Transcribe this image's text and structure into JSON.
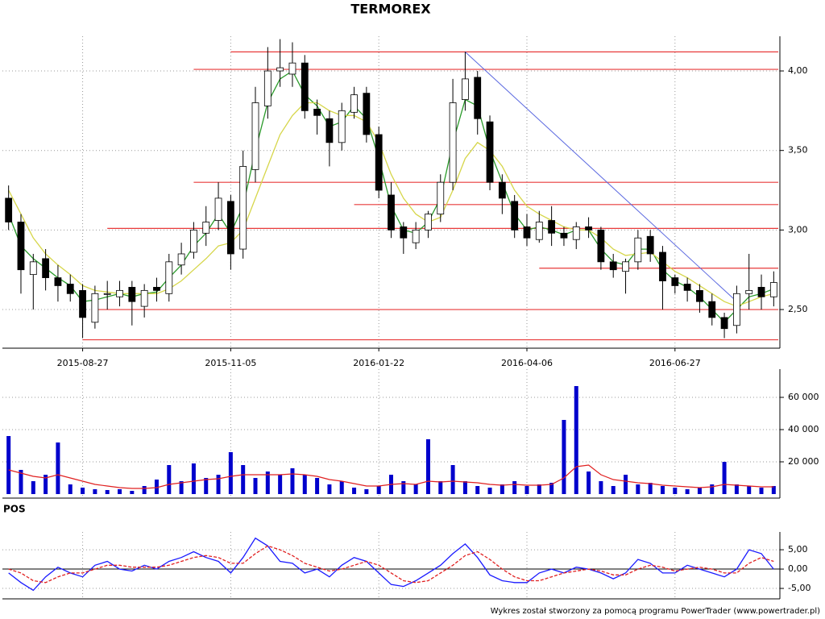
{
  "footer": "Wykres został stworzony za pomocą programu PowerTrader (www.powertrader.pl)",
  "chart_data": [
    {
      "type": "candlestick",
      "title": "TERMOREX",
      "categories": [
        null,
        null,
        null,
        null,
        null,
        null,
        "2015-08-27",
        null,
        null,
        null,
        null,
        null,
        null,
        null,
        null,
        null,
        null,
        null,
        "2015-11-05",
        null,
        null,
        null,
        null,
        null,
        null,
        null,
        null,
        null,
        null,
        null,
        "2016-01-22",
        null,
        null,
        null,
        null,
        null,
        null,
        null,
        null,
        null,
        null,
        null,
        "2016-04-06",
        null,
        null,
        null,
        null,
        null,
        null,
        null,
        null,
        null,
        null,
        null,
        "2016-06-27",
        null,
        null,
        null,
        null,
        null,
        null,
        null,
        null
      ],
      "open": [
        3.2,
        3.05,
        2.72,
        2.82,
        2.7,
        2.66,
        2.62,
        2.42,
        2.6,
        2.58,
        2.64,
        2.52,
        2.64,
        2.6,
        2.78,
        2.86,
        2.98,
        3.06,
        3.18,
        2.88,
        3.38,
        3.78,
        4.0,
        3.98,
        4.05,
        3.76,
        3.7,
        3.55,
        3.74,
        3.86,
        3.6,
        3.22,
        3.02,
        2.92,
        3.0,
        3.1,
        3.3,
        3.82,
        3.96,
        3.68,
        3.3,
        3.18,
        3.02,
        2.94,
        3.06,
        2.98,
        2.94,
        3.02,
        3.0,
        2.8,
        2.74,
        2.8,
        2.96,
        2.86,
        2.7,
        2.66,
        2.62,
        2.55,
        2.45,
        2.4,
        2.6,
        2.64,
        2.58
      ],
      "high": [
        3.28,
        3.1,
        2.85,
        2.88,
        2.78,
        2.72,
        2.66,
        2.65,
        2.68,
        2.68,
        2.68,
        2.66,
        2.7,
        2.85,
        2.92,
        3.05,
        3.15,
        3.3,
        3.22,
        3.5,
        3.9,
        4.15,
        4.2,
        4.18,
        4.1,
        3.82,
        3.75,
        3.8,
        3.9,
        3.9,
        3.65,
        3.3,
        3.05,
        3.05,
        3.12,
        3.35,
        3.95,
        4.12,
        4.0,
        3.72,
        3.35,
        3.22,
        3.1,
        3.12,
        3.15,
        3.02,
        3.05,
        3.08,
        3.02,
        2.85,
        2.82,
        3.0,
        3.0,
        2.9,
        2.72,
        2.7,
        2.66,
        2.6,
        2.48,
        2.65,
        2.85,
        2.72,
        2.74
      ],
      "low": [
        3.0,
        2.6,
        2.5,
        2.62,
        2.55,
        2.55,
        2.32,
        2.38,
        2.5,
        2.52,
        2.4,
        2.45,
        2.55,
        2.55,
        2.72,
        2.82,
        2.9,
        3.0,
        2.75,
        2.82,
        3.3,
        3.7,
        3.9,
        3.9,
        3.7,
        3.6,
        3.4,
        3.5,
        3.7,
        3.55,
        3.2,
        2.95,
        2.85,
        2.88,
        2.95,
        3.05,
        3.25,
        3.75,
        3.6,
        3.25,
        3.1,
        2.95,
        2.9,
        2.92,
        2.9,
        2.9,
        2.88,
        2.95,
        2.75,
        2.7,
        2.6,
        2.75,
        2.8,
        2.5,
        2.6,
        2.55,
        2.48,
        2.4,
        2.32,
        2.35,
        2.5,
        2.5,
        2.52
      ],
      "close": [
        3.05,
        2.75,
        2.8,
        2.7,
        2.65,
        2.6,
        2.45,
        2.6,
        2.6,
        2.62,
        2.55,
        2.62,
        2.62,
        2.8,
        2.85,
        3.0,
        3.05,
        3.2,
        2.85,
        3.4,
        3.8,
        4.0,
        4.02,
        4.05,
        3.75,
        3.72,
        3.55,
        3.75,
        3.85,
        3.6,
        3.25,
        3.0,
        2.95,
        3.0,
        3.1,
        3.3,
        3.8,
        3.95,
        3.7,
        3.3,
        3.2,
        3.0,
        2.95,
        3.05,
        2.98,
        2.95,
        3.02,
        3.0,
        2.8,
        2.75,
        2.8,
        2.95,
        2.85,
        2.68,
        2.65,
        2.62,
        2.55,
        2.45,
        2.38,
        2.6,
        2.62,
        2.58,
        2.67
      ],
      "series": [
        {
          "color": "#2a9a2a",
          "values": [
            3.1,
            2.9,
            2.82,
            2.76,
            2.7,
            2.65,
            2.55,
            2.56,
            2.58,
            2.6,
            2.58,
            2.6,
            2.61,
            2.7,
            2.78,
            2.9,
            2.98,
            3.1,
            2.98,
            3.15,
            3.5,
            3.8,
            3.95,
            4.0,
            3.85,
            3.78,
            3.65,
            3.68,
            3.78,
            3.7,
            3.45,
            3.15,
            3.0,
            2.98,
            3.05,
            3.2,
            3.55,
            3.82,
            3.78,
            3.5,
            3.3,
            3.1,
            3.0,
            3.02,
            3.0,
            2.97,
            3.0,
            3.0,
            2.88,
            2.8,
            2.78,
            2.88,
            2.88,
            2.75,
            2.68,
            2.64,
            2.58,
            2.5,
            2.42,
            2.5,
            2.58,
            2.6,
            2.63
          ]
        },
        {
          "color": "#d6d64a",
          "values": [
            3.25,
            3.1,
            2.95,
            2.85,
            2.78,
            2.72,
            2.65,
            2.62,
            2.61,
            2.6,
            2.6,
            2.6,
            2.6,
            2.63,
            2.68,
            2.75,
            2.82,
            2.9,
            2.92,
            3.0,
            3.2,
            3.4,
            3.6,
            3.72,
            3.8,
            3.8,
            3.75,
            3.72,
            3.72,
            3.68,
            3.55,
            3.35,
            3.2,
            3.1,
            3.05,
            3.08,
            3.25,
            3.45,
            3.55,
            3.5,
            3.4,
            3.25,
            3.15,
            3.1,
            3.06,
            3.02,
            3.0,
            3.0,
            2.95,
            2.88,
            2.84,
            2.85,
            2.86,
            2.8,
            2.74,
            2.7,
            2.65,
            2.6,
            2.55,
            2.52,
            2.55,
            2.58,
            2.6
          ]
        }
      ],
      "levels": [
        {
          "value": 4.12,
          "from": 18
        },
        {
          "value": 4.01,
          "from": 15
        },
        {
          "value": 3.3,
          "from": 15
        },
        {
          "value": 3.16,
          "from": 28
        },
        {
          "value": 3.01,
          "from": 8
        },
        {
          "value": 2.76,
          "from": 43
        },
        {
          "value": 2.5,
          "from": 7
        },
        {
          "value": 2.31,
          "from": 6
        }
      ],
      "level_color": "#e83a3a",
      "trendline": {
        "x": [
          37,
          59
        ],
        "values": [
          4.12,
          2.55
        ],
        "color": "#5a68e0"
      },
      "ylim": [
        2.257,
        4.218
      ],
      "yticks": [
        {
          "value": 2.5,
          "label": "2,50"
        },
        {
          "value": 3,
          "label": "3,00"
        },
        {
          "value": 3.5,
          "label": "3,50"
        },
        {
          "value": 4,
          "label": "4,00"
        }
      ],
      "grid": true
    },
    {
      "type": "bar",
      "color": "#0000cc",
      "values": [
        36000,
        15000,
        8000,
        12000,
        32000,
        6000,
        4000,
        3000,
        2500,
        3000,
        2000,
        5000,
        9000,
        18000,
        8000,
        19000,
        10000,
        12000,
        26000,
        18000,
        10000,
        14000,
        12000,
        16000,
        12000,
        10000,
        6000,
        8000,
        4000,
        3000,
        5000,
        12000,
        8000,
        6000,
        34000,
        8000,
        18000,
        8000,
        5000,
        4000,
        6000,
        8000,
        5000,
        6000,
        7000,
        46000,
        67000,
        14000,
        8000,
        5000,
        12000,
        6000,
        7000,
        5000,
        4000,
        3000,
        4000,
        6000,
        20000,
        6000,
        5000,
        4000,
        5000
      ],
      "series": [
        {
          "color": "#e02020",
          "values": [
            15000,
            13000,
            11000,
            10000,
            12000,
            10000,
            8000,
            6000,
            5000,
            4000,
            3500,
            3500,
            4000,
            6000,
            7000,
            8000,
            9000,
            9500,
            11000,
            12000,
            12000,
            12000,
            12000,
            12500,
            12000,
            11000,
            9000,
            8000,
            6500,
            5000,
            5000,
            6000,
            6500,
            6000,
            8000,
            7500,
            8000,
            7500,
            7000,
            6000,
            5500,
            6000,
            5500,
            5500,
            6000,
            10000,
            17000,
            18000,
            12000,
            9000,
            8000,
            7000,
            6500,
            5500,
            5000,
            4500,
            4000,
            4500,
            6000,
            5500,
            5000,
            4500,
            4500
          ]
        }
      ],
      "ylim": [
        -2500,
        77500
      ],
      "yticks": [
        {
          "value": 20000,
          "label": "20 000"
        },
        {
          "value": 40000,
          "label": "40 000"
        },
        {
          "value": 60000,
          "label": "60 000"
        }
      ],
      "grid": true
    },
    {
      "type": "line",
      "title": "POS",
      "series": [
        {
          "color": "#1a1aff",
          "values": [
            -1,
            -3.5,
            -5.5,
            -2,
            0.5,
            -1,
            -2,
            1,
            2,
            0,
            -0.5,
            1,
            0,
            2,
            3,
            4.5,
            3,
            2,
            -1,
            3,
            8,
            6,
            2,
            1.5,
            -1,
            0,
            -2,
            1,
            3,
            2,
            -1,
            -4,
            -4.5,
            -3,
            -1,
            1,
            4,
            6.5,
            3,
            -1.5,
            -3,
            -3.5,
            -3.5,
            -1,
            0,
            -1,
            0.5,
            0,
            -1,
            -2.5,
            -1,
            2.5,
            1.5,
            -1,
            -1,
            1,
            0,
            -1,
            -2,
            0,
            5,
            4,
            0
          ]
        },
        {
          "color": "#e02020",
          "dashed": true,
          "values": [
            0,
            -1,
            -3,
            -3.5,
            -2,
            -1,
            -1,
            0,
            1,
            1,
            0.5,
            0.5,
            0.5,
            1,
            2,
            3,
            3.5,
            3,
            1.5,
            1.5,
            4,
            6,
            5,
            3.5,
            1.5,
            0.5,
            -0.5,
            0,
            1,
            2,
            1,
            -1,
            -3,
            -3.5,
            -3,
            -1,
            1,
            3.5,
            4.5,
            2.5,
            0,
            -2,
            -3,
            -3,
            -2,
            -1,
            -0.5,
            0,
            -0.5,
            -1.5,
            -1.5,
            0,
            1,
            0.5,
            -0.5,
            0,
            0.5,
            0,
            -1,
            -1,
            1.5,
            3,
            2
          ]
        }
      ],
      "ylim": [
        -7.7,
        9.6
      ],
      "yticks": [
        {
          "value": -5,
          "label": "-5,00"
        },
        {
          "value": 0,
          "label": "0,00"
        },
        {
          "value": 5,
          "label": "5,00"
        }
      ],
      "grid": true
    }
  ]
}
